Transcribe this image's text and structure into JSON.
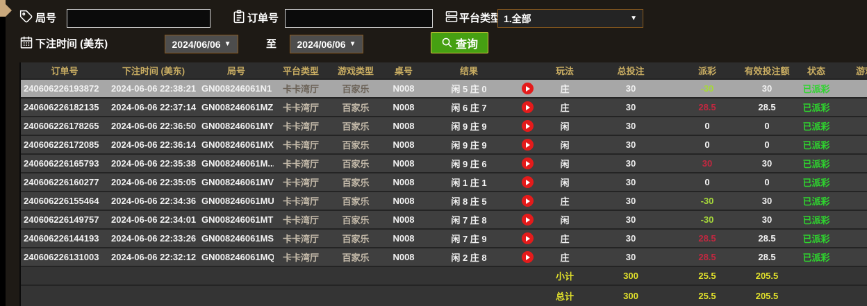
{
  "colors": {
    "accent_border": "#8a5a1e",
    "button_green": "#46a012",
    "button_border_yellow": "#dcc83e",
    "header_gold": "#c9ad62",
    "payout_win_red": "#c22840",
    "payout_loss_green": "#a6d83a",
    "status_green": "#2ed52e",
    "totals_yellow": "#e3e32b",
    "selected_row_gray": "#a7a7a7",
    "replay_red": "#e41b1b"
  },
  "filters": {
    "round_label": "局号",
    "round_value": "",
    "order_label": "订单号",
    "order_value": "",
    "platform_label": "平台类型",
    "platform_value": "1.全部",
    "bet_time_label": "下注时间 (美东)",
    "date_from": "2024/06/06",
    "to_label": "至",
    "date_to": "2024/06/06",
    "search_label": "查询",
    "icons": {
      "round": "tag-icon",
      "order": "clipboard-icon",
      "platform": "server-stack-icon",
      "bet_time": "calendar-icon",
      "search": "search-icon"
    }
  },
  "table": {
    "headers": [
      "订单号",
      "下注时间 (美东)",
      "局号",
      "平台类型",
      "游戏类型",
      "桌号",
      "结果",
      "",
      "玩法",
      "总投注",
      "派彩",
      "有效投注额",
      "状态",
      "游戏"
    ],
    "rows": [
      {
        "order": "240606226193872",
        "time": "2024-06-06 22:38:21",
        "round": "GN008246061N1",
        "platform": "卡卡湾厅",
        "game": "百家乐",
        "table_no": "N008",
        "result": "闲 5 庄 0",
        "has_replay": true,
        "play": "庄",
        "total_bet": "30",
        "payout": "-30",
        "payout_class": "neg",
        "valid_bet": "30",
        "status": "已派彩",
        "selected": true
      },
      {
        "order": "240606226182135",
        "time": "2024-06-06 22:37:14",
        "round": "GN008246061MZ",
        "platform": "卡卡湾厅",
        "game": "百家乐",
        "table_no": "N008",
        "result": "闲 6 庄 7",
        "has_replay": true,
        "play": "庄",
        "total_bet": "30",
        "payout": "28.5",
        "payout_class": "pos",
        "valid_bet": "28.5",
        "status": "已派彩",
        "selected": false
      },
      {
        "order": "240606226178265",
        "time": "2024-06-06 22:36:50",
        "round": "GN008246061MY",
        "platform": "卡卡湾厅",
        "game": "百家乐",
        "table_no": "N008",
        "result": "闲 9 庄 9",
        "has_replay": true,
        "play": "闲",
        "total_bet": "30",
        "payout": "0",
        "payout_class": "zero",
        "valid_bet": "0",
        "status": "已派彩",
        "selected": false
      },
      {
        "order": "240606226172085",
        "time": "2024-06-06 22:36:14",
        "round": "GN008246061MX",
        "platform": "卡卡湾厅",
        "game": "百家乐",
        "table_no": "N008",
        "result": "闲 9 庄 9",
        "has_replay": true,
        "play": "闲",
        "total_bet": "30",
        "payout": "0",
        "payout_class": "zero",
        "valid_bet": "0",
        "status": "已派彩",
        "selected": false
      },
      {
        "order": "240606226165793",
        "time": "2024-06-06 22:35:38",
        "round": "GN008246061M...",
        "platform": "卡卡湾厅",
        "game": "百家乐",
        "table_no": "N008",
        "result": "闲 9 庄 6",
        "has_replay": true,
        "play": "闲",
        "total_bet": "30",
        "payout": "30",
        "payout_class": "pos",
        "valid_bet": "30",
        "status": "已派彩",
        "selected": false
      },
      {
        "order": "240606226160277",
        "time": "2024-06-06 22:35:05",
        "round": "GN008246061MV",
        "platform": "卡卡湾厅",
        "game": "百家乐",
        "table_no": "N008",
        "result": "闲 1 庄 1",
        "has_replay": true,
        "play": "闲",
        "total_bet": "30",
        "payout": "0",
        "payout_class": "zero",
        "valid_bet": "0",
        "status": "已派彩",
        "selected": false
      },
      {
        "order": "240606226155464",
        "time": "2024-06-06 22:34:36",
        "round": "GN008246061MU",
        "platform": "卡卡湾厅",
        "game": "百家乐",
        "table_no": "N008",
        "result": "闲 8 庄 5",
        "has_replay": true,
        "play": "庄",
        "total_bet": "30",
        "payout": "-30",
        "payout_class": "neg",
        "valid_bet": "30",
        "status": "已派彩",
        "selected": false
      },
      {
        "order": "240606226149757",
        "time": "2024-06-06 22:34:01",
        "round": "GN008246061MT",
        "platform": "卡卡湾厅",
        "game": "百家乐",
        "table_no": "N008",
        "result": "闲 7 庄 8",
        "has_replay": true,
        "play": "闲",
        "total_bet": "30",
        "payout": "-30",
        "payout_class": "neg",
        "valid_bet": "30",
        "status": "已派彩",
        "selected": false
      },
      {
        "order": "240606226144193",
        "time": "2024-06-06 22:33:26",
        "round": "GN008246061MS",
        "platform": "卡卡湾厅",
        "game": "百家乐",
        "table_no": "N008",
        "result": "闲 7 庄 9",
        "has_replay": true,
        "play": "庄",
        "total_bet": "30",
        "payout": "28.5",
        "payout_class": "pos",
        "valid_bet": "28.5",
        "status": "已派彩",
        "selected": false
      },
      {
        "order": "240606226131003",
        "time": "2024-06-06 22:32:12",
        "round": "GN008246061MQ",
        "platform": "卡卡湾厅",
        "game": "百家乐",
        "table_no": "N008",
        "result": "闲 2 庄 8",
        "has_replay": true,
        "play": "庄",
        "total_bet": "30",
        "payout": "28.5",
        "payout_class": "pos",
        "valid_bet": "28.5",
        "status": "已派彩",
        "selected": false
      }
    ],
    "summary_rows": [
      {
        "label": "小计",
        "total_bet": "300",
        "payout": "25.5",
        "valid_bet": "205.5"
      },
      {
        "label": "总计",
        "total_bet": "300",
        "payout": "25.5",
        "valid_bet": "205.5"
      }
    ]
  }
}
